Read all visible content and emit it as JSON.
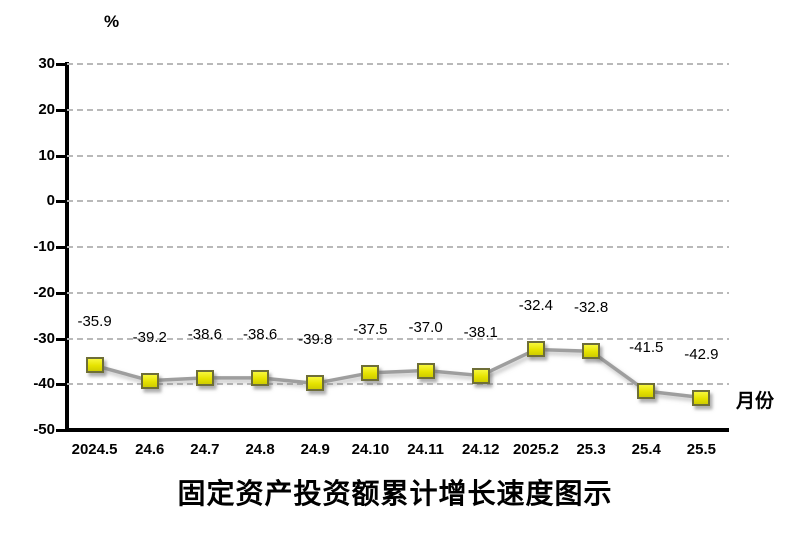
{
  "chart_data": {
    "type": "line",
    "title": "固定资产投资额累计增长速度图示",
    "y_unit_label": "%",
    "x_axis_label": "月份",
    "categories": [
      "2024.5",
      "24.6",
      "24.7",
      "24.8",
      "24.9",
      "24.10",
      "24.11",
      "24.12",
      "2025.2",
      "25.3",
      "25.4",
      "25.5"
    ],
    "values": [
      -35.9,
      -39.2,
      -38.6,
      -38.6,
      -39.8,
      -37.5,
      -37.0,
      -38.1,
      -32.4,
      -32.8,
      -41.5,
      -42.9
    ],
    "data_labels": [
      "-35.9",
      "-39.2",
      "-38.6",
      "-38.6",
      "-39.8",
      "-37.5",
      "-37.0",
      "-38.1",
      "-32.4",
      "-32.8",
      "-41.5",
      "-42.9"
    ],
    "ylim": [
      -50,
      30
    ],
    "ytick_interval": 10,
    "yticks": [
      30,
      20,
      10,
      0,
      -10,
      -20,
      -30,
      -40,
      -50
    ],
    "grid": true,
    "legend": "none",
    "colors": {
      "line": "#9e9e9e",
      "marker_fill": "#e6e300",
      "marker_fill_light": "#f7f73c",
      "marker_border": "#6e6e38",
      "gridline": "#b9b9b9",
      "axis": "#000000",
      "text": "#000000",
      "background": "#ffffff"
    }
  }
}
